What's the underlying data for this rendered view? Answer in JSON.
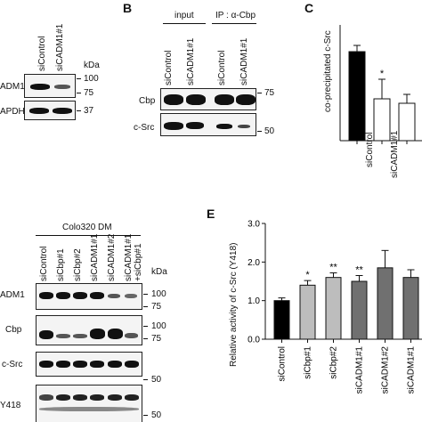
{
  "panels": {
    "A": {
      "lanes": [
        "siControl",
        "siCADM1#1"
      ],
      "rows": [
        "ADM1",
        "APDH"
      ],
      "unit": "kDa",
      "markers": [
        "100",
        "75",
        "37"
      ]
    },
    "B": {
      "letter": "B",
      "groups": [
        "input",
        "IP : α-Cbp"
      ],
      "lanes": [
        "siControl",
        "siCADM1#1",
        "siControl",
        "siCADM1#1"
      ],
      "rows": [
        "Cbp",
        "c-Src"
      ],
      "markers": [
        "75",
        "50"
      ]
    },
    "C": {
      "letter": "C",
      "ylabel": "co-precipitated c-Src",
      "lanes": [
        "siControl",
        "siCADM1#1"
      ],
      "significance": [
        "*"
      ]
    },
    "D": {
      "cell_line": "Colo320 DM",
      "lanes": [
        "siControl",
        "siCbp#1",
        "siCbp#2",
        "siCADM1#1",
        "siCADM1#2",
        "siCADM1#1 +siCbp#1"
      ],
      "rows": [
        "ADM1",
        "Cbp",
        "c-Src",
        "Y418"
      ],
      "unit": "kDa",
      "markers": [
        "100",
        "75",
        "100",
        "75",
        "50",
        "50"
      ]
    },
    "E": {
      "letter": "E",
      "significance": [
        "*",
        "**",
        "**"
      ]
    }
  },
  "chart_data": [
    {
      "type": "bar",
      "panel": "C",
      "categories": [
        "siControl",
        "siCADM1#1",
        ""
      ],
      "values": [
        1.0,
        0.47,
        0.42
      ],
      "errors": [
        0.07,
        0.22,
        0.1
      ],
      "colors": [
        "#000000",
        "#ffffff",
        "#ffffff"
      ],
      "ylabel": "co-precipitated c-Src",
      "ylim": [
        0,
        1.3
      ]
    },
    {
      "type": "bar",
      "panel": "E",
      "categories": [
        "siControl",
        "siCbp#1",
        "siCbp#2",
        "siCADM1#1",
        "siCADM1#2",
        "siCADM1#1"
      ],
      "values": [
        1.0,
        1.4,
        1.6,
        1.5,
        1.85,
        1.6
      ],
      "errors": [
        0.07,
        0.12,
        0.12,
        0.15,
        0.45,
        0.2
      ],
      "colors": [
        "#000000",
        "#bdbdbd",
        "#bdbdbd",
        "#707070",
        "#707070",
        "#707070"
      ],
      "ylabel": "Relative activity of c-Src (Y418)",
      "yticks": [
        "0.0",
        "1.0",
        "2.0",
        "3.0"
      ],
      "ylim": [
        0,
        3.0
      ],
      "significance": [
        "",
        "*",
        "**",
        "**",
        "",
        ""
      ]
    }
  ]
}
